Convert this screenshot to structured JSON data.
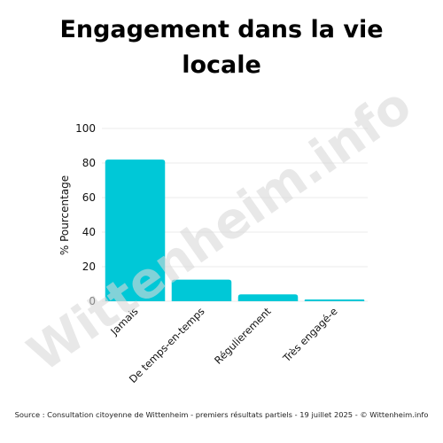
{
  "chart_data": {
    "type": "bar",
    "title": "Engagement dans la vie locale",
    "categories": [
      "Jamais",
      "De temps-en-temps",
      "Régulierement",
      "Très engagé-e"
    ],
    "values": [
      82,
      12.5,
      4,
      1
    ],
    "xlabel": "",
    "ylabel": "% Pourcentage",
    "ylim": [
      0,
      100
    ],
    "yticks": [
      0,
      20,
      40,
      60,
      80,
      100
    ],
    "grid": true,
    "bar_color": "#00C8D7"
  },
  "watermark": "Wittenheim.info",
  "source": "Source : Consultation citoyenne de Wittenheim - premiers résultats partiels - 19 juillet 2025 - © Wittenheim.info",
  "colors": {
    "grid": "#EBEBEB",
    "watermark": "#D9D9D9"
  }
}
